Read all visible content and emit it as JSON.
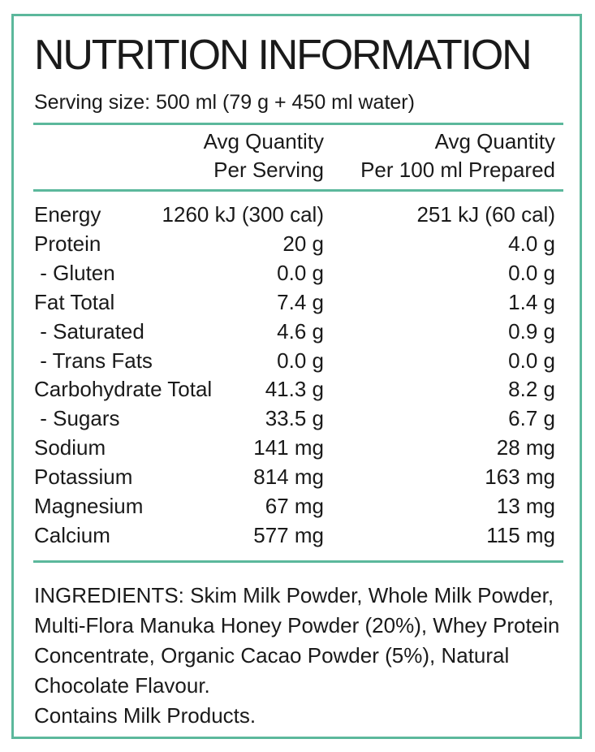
{
  "title": "NUTRITION INFORMATION",
  "serving_size": "Serving size: 500 ml  (79 g + 450 ml water)",
  "columns": [
    {
      "line1": "Avg Quantity",
      "line2": "Per Serving"
    },
    {
      "line1": "Avg Quantity",
      "line2": "Per 100 ml Prepared"
    }
  ],
  "rows": [
    {
      "name": "Energy",
      "per_serving": "1260 kJ (300 cal)",
      "per_100ml": "251 kJ (60 cal)"
    },
    {
      "name": "Protein",
      "per_serving": "20 g",
      "per_100ml": "4.0 g"
    },
    {
      "name": " - Gluten",
      "per_serving": "0.0 g",
      "per_100ml": "0.0 g"
    },
    {
      "name": "Fat Total",
      "per_serving": "7.4 g",
      "per_100ml": "1.4 g"
    },
    {
      "name": " - Saturated",
      "per_serving": "4.6 g",
      "per_100ml": "0.9 g"
    },
    {
      "name": " - Trans Fats",
      "per_serving": "0.0 g",
      "per_100ml": "0.0 g"
    },
    {
      "name": "Carbohydrate Total",
      "per_serving": "41.3 g",
      "per_100ml": "8.2 g"
    },
    {
      "name": " - Sugars",
      "per_serving": "33.5 g",
      "per_100ml": "6.7 g"
    },
    {
      "name": "Sodium",
      "per_serving": "141 mg",
      "per_100ml": "28 mg"
    },
    {
      "name": "Potassium",
      "per_serving": "814 mg",
      "per_100ml": "163 mg"
    },
    {
      "name": "Magnesium",
      "per_serving": "67 mg",
      "per_100ml": "13 mg"
    },
    {
      "name": "Calcium",
      "per_serving": "577 mg",
      "per_100ml": "115 mg"
    }
  ],
  "ingredients": {
    "segments": [
      {
        "text": "INGREDIENTS: Skim ",
        "bold": false
      },
      {
        "text": "Milk",
        "bold": true
      },
      {
        "text": " Powder, Whole ",
        "bold": false
      },
      {
        "text": "Milk",
        "bold": true
      },
      {
        "text": " Powder, Multi-Flora Manuka Honey Powder (20%), Whey Protein Concentrate, Organic Cacao Powder (5%), Natural Chocolate Flavour. ",
        "bold": false
      }
    ],
    "allergen": "Contains Milk Products."
  },
  "colors": {
    "accent": "#5cb89c",
    "text": "#1a1a1a"
  }
}
